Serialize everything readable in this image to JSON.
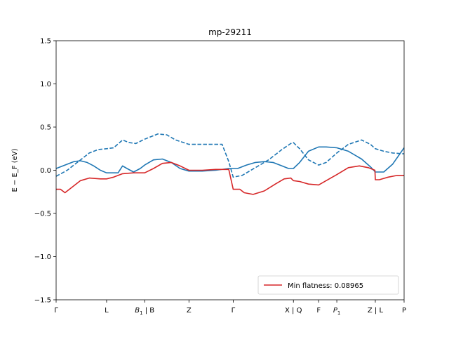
{
  "chart_data": {
    "type": "line",
    "title": "mp-29211",
    "ylabel": "E − E_F (eV)",
    "xlabel": "",
    "ylim": [
      -1.5,
      1.5
    ],
    "xlim": [
      0,
      7.86
    ],
    "yticks": [
      -1.5,
      -1.0,
      -0.5,
      0.0,
      0.5,
      1.0,
      1.5
    ],
    "ytick_labels": [
      "−1.5",
      "−1.0",
      "−0.5",
      "0.0",
      "0.5",
      "1.0",
      "1.5"
    ],
    "xticks": [
      {
        "pos": 0.0,
        "main": "Γ",
        "sub": ""
      },
      {
        "pos": 1.14,
        "main": "L",
        "sub": ""
      },
      {
        "pos": 2.0,
        "main": "B",
        "sub": "1",
        "suffix": " | B"
      },
      {
        "pos": 3.0,
        "main": "Z",
        "sub": ""
      },
      {
        "pos": 4.0,
        "main": "Γ",
        "sub": ""
      },
      {
        "pos": 5.36,
        "main": "X | Q",
        "sub": ""
      },
      {
        "pos": 5.93,
        "main": "F",
        "sub": ""
      },
      {
        "pos": 6.34,
        "main": "P",
        "sub": "1"
      },
      {
        "pos": 7.21,
        "main": "Z | L",
        "sub": ""
      },
      {
        "pos": 7.86,
        "main": "P",
        "sub": ""
      }
    ],
    "legend": {
      "label": "Min flatness: 0.08965",
      "placement": "lower-right",
      "color": "#d62728"
    },
    "colors": {
      "blue": "#1f77b4",
      "red": "#d62728"
    },
    "series": [
      {
        "style": "solid",
        "color": "#1f77b4",
        "x": [
          0,
          0.2,
          0.4,
          0.55,
          0.7,
          0.85,
          1.0,
          1.14,
          1.3,
          1.4,
          1.5,
          1.6,
          1.75,
          1.9,
          2.0,
          2.2,
          2.4,
          2.6,
          2.8,
          3.0,
          3.3,
          3.6,
          3.9,
          4.1,
          4.3,
          4.5,
          4.7,
          4.9,
          5.1,
          5.25,
          5.36,
          5.5,
          5.7,
          5.93,
          6.1,
          6.34,
          6.6,
          6.9,
          7.1,
          7.21,
          7.4,
          7.6,
          7.86
        ],
        "y": [
          0.02,
          0.06,
          0.1,
          0.11,
          0.09,
          0.05,
          0.0,
          -0.03,
          -0.03,
          -0.03,
          0.05,
          0.02,
          -0.02,
          0.02,
          0.06,
          0.12,
          0.13,
          0.09,
          0.02,
          -0.01,
          -0.01,
          0.0,
          0.02,
          0.02,
          0.06,
          0.09,
          0.1,
          0.09,
          0.05,
          0.02,
          0.02,
          0.09,
          0.22,
          0.27,
          0.27,
          0.26,
          0.22,
          0.13,
          0.04,
          -0.02,
          -0.02,
          0.07,
          0.26
        ]
      },
      {
        "style": "dashed",
        "color": "#1f77b4",
        "x": [
          0,
          0.25,
          0.5,
          0.75,
          0.95,
          1.14,
          1.3,
          1.5,
          1.65,
          1.8,
          2.0,
          2.3,
          2.5,
          2.7,
          3.0,
          3.3,
          3.6,
          3.75,
          3.9,
          4.0,
          4.2,
          4.5,
          4.8,
          5.1,
          5.3,
          5.36,
          5.5,
          5.7,
          5.93,
          6.1,
          6.34,
          6.6,
          6.9,
          7.1,
          7.21,
          7.4,
          7.6,
          7.86
        ],
        "y": [
          -0.07,
          0.0,
          0.1,
          0.2,
          0.24,
          0.25,
          0.26,
          0.35,
          0.32,
          0.31,
          0.36,
          0.42,
          0.41,
          0.35,
          0.3,
          0.3,
          0.3,
          0.3,
          0.1,
          -0.08,
          -0.06,
          0.03,
          0.12,
          0.24,
          0.31,
          0.32,
          0.25,
          0.12,
          0.06,
          0.09,
          0.2,
          0.3,
          0.35,
          0.3,
          0.25,
          0.22,
          0.2,
          0.19
        ]
      },
      {
        "style": "solid",
        "color": "#d62728",
        "x": [
          0,
          0.1,
          0.2,
          0.35,
          0.55,
          0.75,
          1.0,
          1.14,
          1.3,
          1.5,
          1.75,
          2.0,
          2.2,
          2.4,
          2.6,
          2.8,
          3.0,
          3.3,
          3.6,
          3.9,
          4.0,
          4.15,
          4.25,
          4.45,
          4.7,
          4.95,
          5.15,
          5.3,
          5.36,
          5.5,
          5.7,
          5.93,
          6.1,
          6.34,
          6.6,
          6.85,
          7.05,
          7.2,
          7.21,
          7.3,
          7.5,
          7.7,
          7.86
        ],
        "y": [
          -0.22,
          -0.22,
          -0.26,
          -0.2,
          -0.12,
          -0.09,
          -0.1,
          -0.1,
          -0.08,
          -0.04,
          -0.03,
          -0.03,
          0.02,
          0.08,
          0.09,
          0.05,
          0.0,
          0.0,
          0.01,
          0.01,
          -0.22,
          -0.22,
          -0.26,
          -0.28,
          -0.24,
          -0.16,
          -0.1,
          -0.09,
          -0.12,
          -0.13,
          -0.16,
          -0.17,
          -0.12,
          -0.05,
          0.03,
          0.05,
          0.03,
          0.0,
          -0.11,
          -0.11,
          -0.08,
          -0.06,
          -0.06
        ]
      }
    ]
  }
}
